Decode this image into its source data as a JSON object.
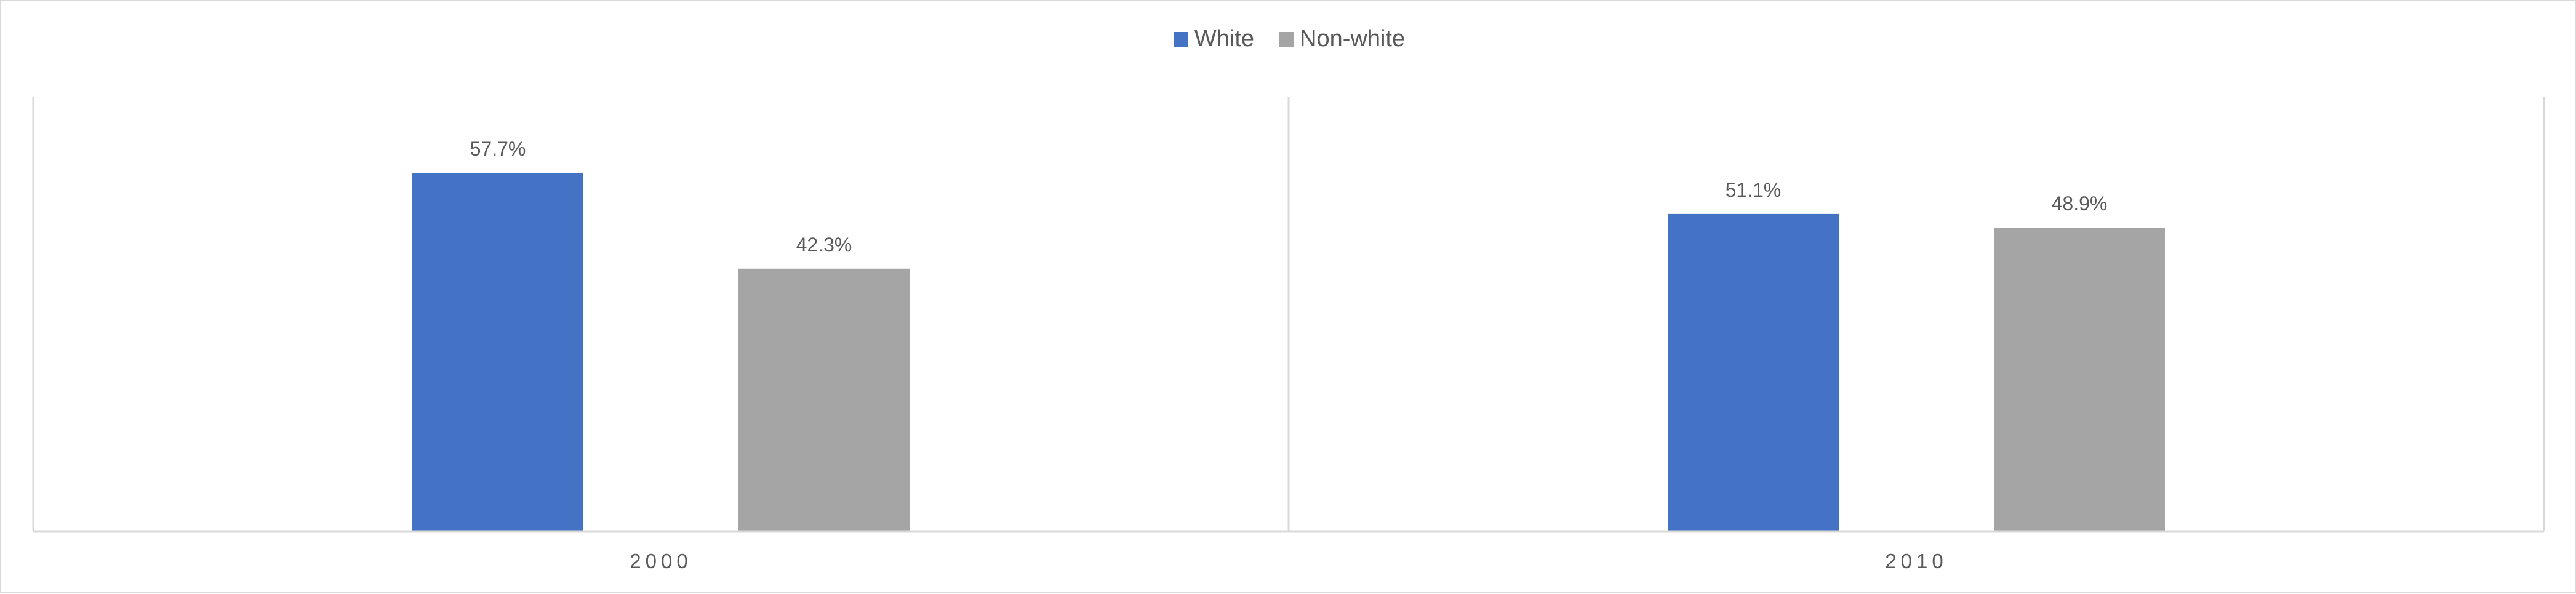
{
  "chart_data": {
    "type": "bar",
    "categories": [
      "2000",
      "2010"
    ],
    "series": [
      {
        "name": "White",
        "color": "#4472c4",
        "values": [
          57.7,
          51.1
        ],
        "labels": [
          "57.7%",
          "51.1%"
        ]
      },
      {
        "name": "Non-white",
        "color": "#a5a5a5",
        "values": [
          42.3,
          48.9
        ],
        "labels": [
          "42.3%",
          "48.9%"
        ]
      }
    ],
    "ylim": [
      0,
      70
    ],
    "grid": false,
    "legend": "top-center"
  }
}
